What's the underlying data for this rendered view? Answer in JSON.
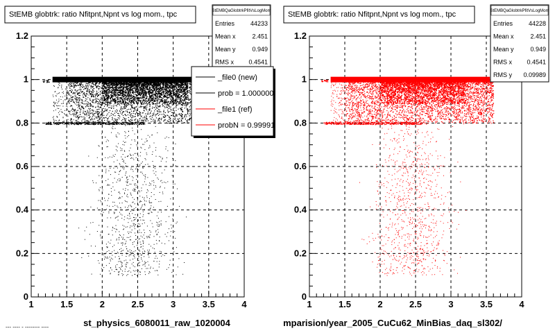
{
  "chart_data": [
    {
      "type": "scatter",
      "title": "StEMB globtrk: ratio Nfitpnt,Npnt vs log mom., tpc",
      "xlabel": "st_physics_6080011_raw_1020004",
      "ylabel": "",
      "xlim": [
        1,
        4
      ],
      "ylim": [
        0,
        1.2
      ],
      "xticks": [
        "1",
        "1.5",
        "2",
        "2.5",
        "3",
        "3.5",
        "4"
      ],
      "yticks": [
        "0",
        "0.2",
        "0.4",
        "0.6",
        "0.8",
        "1",
        "1.2"
      ],
      "grid": true,
      "color": "#000000",
      "stats": {
        "header": "StEMBQaGlobtrkPfitVsLogMom",
        "rows": [
          {
            "label": "Entries",
            "value": "44233"
          },
          {
            "label": "Mean x",
            "value": "2.451"
          },
          {
            "label": "Mean y",
            "value": "0.949"
          },
          {
            "label": "RMS x",
            "value": "0.4541"
          }
        ]
      },
      "legend": {
        "position": "top-right",
        "entries": [
          {
            "label": "_file0 (new)",
            "color": "#000000"
          },
          {
            "label": "prob = 1.000000",
            "color": "#000000"
          },
          {
            "label": "_file1 (ref)",
            "color": "#ff0000"
          },
          {
            "label": "probN = 0.99991",
            "color": "#ff0000"
          }
        ]
      },
      "density": {
        "band_y": 1.0,
        "band_x": [
          1.3,
          3.95
        ],
        "band2_y": 0.8,
        "band2_x": [
          1.2,
          2.6
        ],
        "main_cloud_y": [
          0.8,
          1.0
        ],
        "main_cloud_x": [
          1.5,
          3.95
        ],
        "sparse_y": [
          0.1,
          0.8
        ],
        "sparse_x": [
          1.4,
          3.3
        ],
        "outlier_x": [
          1.15,
          1.25
        ],
        "outlier_y": 1.0
      }
    },
    {
      "type": "scatter",
      "title": "StEMB globtrk: ratio Nfitpnt,Npnt vs log mom., tpc",
      "xlabel": "mparision/year_2005_CuCu62_MinBias_daq_sl302/",
      "ylabel": "",
      "xlim": [
        1,
        4
      ],
      "ylim": [
        0,
        1.2
      ],
      "xticks": [
        "1",
        "1.5",
        "2",
        "2.5",
        "3",
        "3.5",
        "4"
      ],
      "yticks": [
        "0",
        "0.2",
        "0.4",
        "0.6",
        "0.8",
        "1",
        "1.2"
      ],
      "grid": true,
      "color": "#ff0000",
      "stats": {
        "header": "StEMBQaGlobtrkPfitVsLogMom",
        "rows": [
          {
            "label": "Entries",
            "value": "44228"
          },
          {
            "label": "Mean x",
            "value": "2.451"
          },
          {
            "label": "Mean y",
            "value": "0.949"
          },
          {
            "label": "RMS x",
            "value": "0.4541"
          },
          {
            "label": "RMS y",
            "value": "0.09989"
          }
        ]
      },
      "density": {
        "band_y": 1.0,
        "band_x": [
          1.3,
          3.55
        ],
        "band2_y": 0.8,
        "band2_x": [
          1.2,
          2.6
        ],
        "main_cloud_y": [
          0.8,
          1.0
        ],
        "main_cloud_x": [
          1.5,
          3.6
        ],
        "sparse_y": [
          0.1,
          0.8
        ],
        "sparse_x": [
          1.4,
          3.3
        ],
        "outlier_x": [
          1.15,
          1.25
        ],
        "outlier_y": 1.0
      }
    }
  ],
  "footer": "--- ---- - -------- ----"
}
